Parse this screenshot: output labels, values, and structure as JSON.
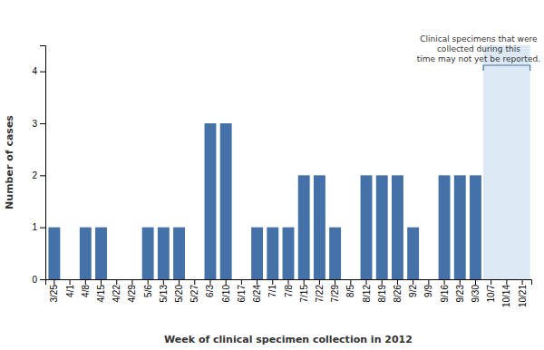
{
  "chart_data": {
    "type": "bar",
    "xlabel": "Week of clinical specimen collection in 2012",
    "ylabel": "Number of cases",
    "categories": [
      "3/25",
      "4/1",
      "4/8",
      "4/15",
      "4/22",
      "4/29",
      "5/6",
      "5/13",
      "5/20",
      "5/27",
      "6/3",
      "6/10",
      "6/17",
      "6/24",
      "7/1",
      "7/8",
      "7/15",
      "7/22",
      "7/29",
      "8/5",
      "8/12",
      "8/19",
      "8/26",
      "9/2",
      "9/9",
      "9/16",
      "9/23",
      "9/30",
      "10/7",
      "10/14",
      "10/21"
    ],
    "values": [
      1,
      0,
      1,
      1,
      0,
      0,
      1,
      1,
      1,
      0,
      3,
      3,
      0,
      1,
      1,
      1,
      2,
      2,
      1,
      0,
      2,
      2,
      2,
      1,
      0,
      2,
      2,
      2,
      0,
      0,
      0
    ],
    "color": "#4472a8",
    "ylim": [
      0,
      4.5
    ],
    "yticks": [
      0,
      1,
      2,
      3,
      4
    ],
    "grid": false,
    "annotation": {
      "text": "Clinical specimens that were\ncollected during this\ntime may not yet be reported.",
      "categories": [
        "10/7",
        "10/21"
      ],
      "color": "#dce9f5"
    }
  }
}
